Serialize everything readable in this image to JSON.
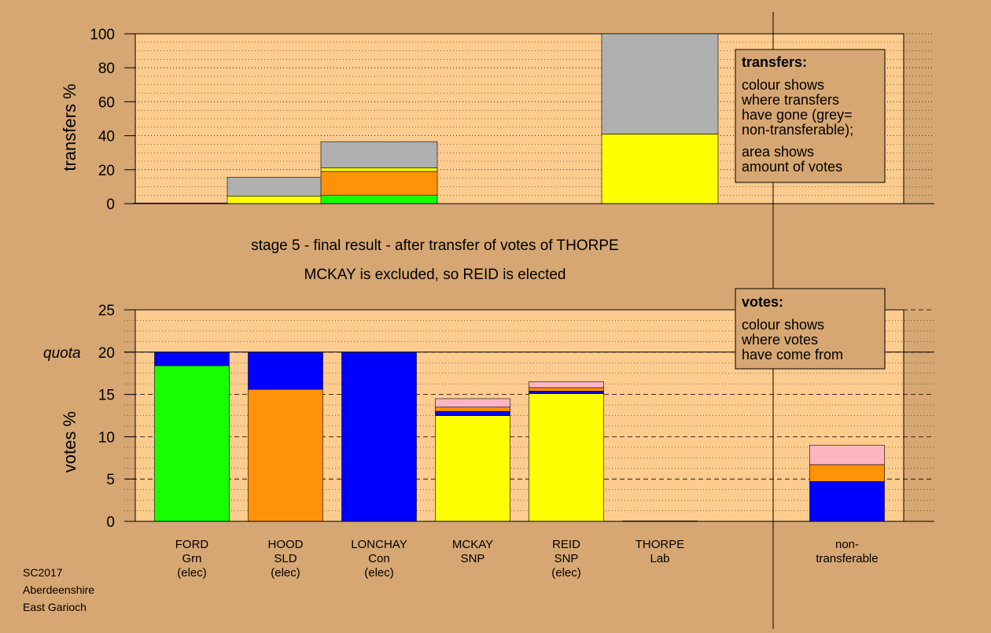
{
  "colors": {
    "background": "#d6a772",
    "plot_background": "#ffcc8f",
    "green": "#17ff00",
    "orange": "#ff9208",
    "blue": "#0000ff",
    "yellow": "#ffff00",
    "pink": "#ffb6c1",
    "grey": "#b0b0b0"
  },
  "footer": {
    "line1": "SC2017",
    "line2": "Aberdeenshire",
    "line3": "East Garioch"
  },
  "stage_title": {
    "line1": "stage 5 - final result - after transfer of votes of THORPE",
    "line2": "MCKAY is excluded, so REID is elected"
  },
  "transfers_legend": {
    "title": "transfers:",
    "lines": [
      "colour shows",
      "where transfers",
      "have gone (grey=",
      "non-transferable);"
    ],
    "lines2": [
      "area shows",
      "amount of votes"
    ]
  },
  "votes_legend": {
    "title": "votes:",
    "lines": [
      "colour shows",
      "where votes",
      "have come from"
    ]
  },
  "chart_data": [
    {
      "type": "bar",
      "stacked": true,
      "title": "",
      "ylabel": "transfers %",
      "ylim": [
        0,
        100
      ],
      "yticks": [
        0,
        20,
        40,
        60,
        80,
        100
      ],
      "grid": "dotted horizontal",
      "categories": [
        "FORD",
        "HOOD",
        "LONCHAY",
        "MCKAY",
        "REID",
        "THORPE",
        "non-transferable"
      ],
      "bars": [
        {
          "category": "FORD",
          "segments": [
            {
              "color": "yellow",
              "value": 0.4
            }
          ]
        },
        {
          "category": "HOOD",
          "segments": [
            {
              "color": "yellow",
              "value": 4.5
            },
            {
              "color": "grey",
              "value": 11.0
            }
          ]
        },
        {
          "category": "LONCHAY",
          "segments": [
            {
              "color": "green",
              "value": 5.0
            },
            {
              "color": "orange",
              "value": 14.0
            },
            {
              "color": "yellow",
              "value": 2.0
            },
            {
              "color": "grey",
              "value": 15.5
            }
          ]
        },
        {
          "category": "THORPE",
          "segments": [
            {
              "color": "yellow",
              "value": 41.0
            },
            {
              "color": "grey",
              "value": 59.0
            }
          ]
        }
      ]
    },
    {
      "type": "bar",
      "stacked": true,
      "title": "",
      "ylabel": "votes %",
      "ylim": [
        0,
        25
      ],
      "yticks": [
        0,
        5,
        10,
        15,
        20,
        25
      ],
      "quota": 20,
      "quota_label": "quota",
      "grid": "dotted horizontal",
      "categories": [
        {
          "name": "FORD",
          "party": "Grn",
          "status": "(elec)"
        },
        {
          "name": "HOOD",
          "party": "SLD",
          "status": "(elec)"
        },
        {
          "name": "LONCHAY",
          "party": "Con",
          "status": "(elec)"
        },
        {
          "name": "MCKAY",
          "party": "SNP",
          "status": ""
        },
        {
          "name": "REID",
          "party": "SNP",
          "status": "(elec)"
        },
        {
          "name": "THORPE",
          "party": "Lab",
          "status": ""
        },
        {
          "name": "non-",
          "party": "transferable",
          "status": ""
        }
      ],
      "bars": [
        {
          "category": "FORD",
          "segments": [
            {
              "color": "green",
              "value": 18.4
            },
            {
              "color": "blue",
              "value": 1.6
            }
          ]
        },
        {
          "category": "HOOD",
          "segments": [
            {
              "color": "orange",
              "value": 15.6
            },
            {
              "color": "blue",
              "value": 4.4
            }
          ]
        },
        {
          "category": "LONCHAY",
          "segments": [
            {
              "color": "blue",
              "value": 20.0
            }
          ]
        },
        {
          "category": "MCKAY",
          "segments": [
            {
              "color": "yellow",
              "value": 12.5
            },
            {
              "color": "blue",
              "value": 0.5
            },
            {
              "color": "orange",
              "value": 0.5
            },
            {
              "color": "pink",
              "value": 1.0
            }
          ]
        },
        {
          "category": "REID",
          "segments": [
            {
              "color": "yellow",
              "value": 15.1
            },
            {
              "color": "blue",
              "value": 0.3
            },
            {
              "color": "orange",
              "value": 0.4
            },
            {
              "color": "pink",
              "value": 0.7
            }
          ]
        },
        {
          "category": "THORPE",
          "segments": [
            {
              "color": "yellow",
              "value": 0.05
            }
          ]
        },
        {
          "category": "non-transferable",
          "segments": [
            {
              "color": "blue",
              "value": 4.7
            },
            {
              "color": "orange",
              "value": 2.0
            },
            {
              "color": "pink",
              "value": 2.3
            }
          ]
        }
      ]
    }
  ]
}
